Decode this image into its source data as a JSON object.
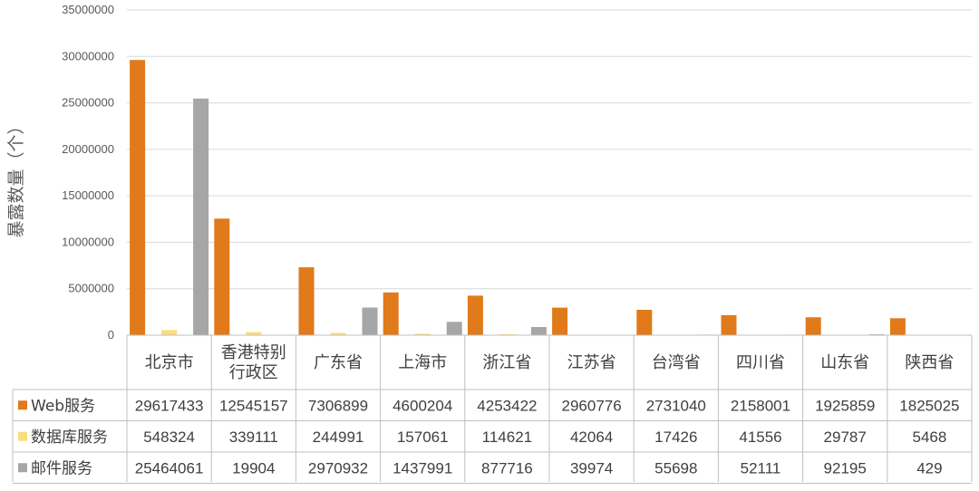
{
  "chart_data": {
    "type": "bar",
    "ylabel": "暴露数量（个）",
    "ylim": [
      0,
      35000000
    ],
    "yticks": [
      0,
      5000000,
      10000000,
      15000000,
      20000000,
      25000000,
      30000000,
      35000000
    ],
    "grid": true,
    "legend": "data-table",
    "categories": [
      [
        "北京市"
      ],
      [
        "香港特别",
        "行政区"
      ],
      [
        "广东省"
      ],
      [
        "上海市"
      ],
      [
        "浙江省"
      ],
      [
        "江苏省"
      ],
      [
        "台湾省"
      ],
      [
        "四川省"
      ],
      [
        "山东省"
      ],
      [
        "陕西省"
      ]
    ],
    "series": [
      {
        "name": "Web服务",
        "color": "#E07A1A",
        "values": [
          29617433,
          12545157,
          7306899,
          4600204,
          4253422,
          2960776,
          2731040,
          2158001,
          1925859,
          1825025
        ]
      },
      {
        "name": "数据库服务",
        "color": "#F9DD7E",
        "values": [
          548324,
          339111,
          244991,
          157061,
          114621,
          42064,
          17426,
          41556,
          29787,
          5468
        ]
      },
      {
        "name": "邮件服务",
        "color": "#A6A6A6",
        "values": [
          25464061,
          19904,
          2970932,
          1437991,
          877716,
          39974,
          55698,
          52111,
          92195,
          429
        ]
      }
    ]
  }
}
